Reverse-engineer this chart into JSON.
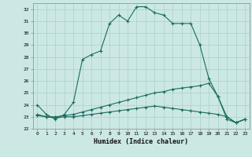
{
  "xlabel": "Humidex (Indice chaleur)",
  "bg_color": "#cce8e4",
  "grid_color": "#aacfcb",
  "line_color": "#1a6b60",
  "xlim": [
    -0.5,
    23.5
  ],
  "ylim": [
    22,
    32.5
  ],
  "xticks": [
    0,
    1,
    2,
    3,
    4,
    5,
    6,
    7,
    8,
    9,
    10,
    11,
    12,
    13,
    14,
    15,
    16,
    17,
    18,
    19,
    20,
    21,
    22,
    23
  ],
  "yticks": [
    22,
    23,
    24,
    25,
    26,
    27,
    28,
    29,
    30,
    31,
    32
  ],
  "line1": {
    "x": [
      0,
      1,
      2,
      3,
      4,
      5,
      6,
      7,
      8,
      9,
      10,
      11,
      12,
      13,
      14,
      15,
      16,
      17,
      18,
      19,
      20,
      21,
      22,
      23
    ],
    "y": [
      24.0,
      23.2,
      22.8,
      23.2,
      24.2,
      27.8,
      28.2,
      28.5,
      30.8,
      31.5,
      31.0,
      32.2,
      32.2,
      31.7,
      31.5,
      30.8,
      30.8,
      30.8,
      29.0,
      26.2,
      24.7,
      22.8,
      22.5,
      22.8
    ]
  },
  "line2": {
    "x": [
      0,
      1,
      2,
      3,
      4,
      5,
      6,
      7,
      8,
      9,
      10,
      11,
      12,
      13,
      14,
      15,
      16,
      17,
      18,
      19,
      20,
      21,
      22,
      23
    ],
    "y": [
      23.2,
      23.0,
      23.0,
      23.1,
      23.2,
      23.4,
      23.6,
      23.8,
      24.0,
      24.2,
      24.4,
      24.6,
      24.8,
      25.0,
      25.1,
      25.3,
      25.4,
      25.5,
      25.6,
      25.8,
      24.7,
      23.0,
      22.5,
      22.8
    ]
  },
  "line3": {
    "x": [
      0,
      1,
      2,
      3,
      4,
      5,
      6,
      7,
      8,
      9,
      10,
      11,
      12,
      13,
      14,
      15,
      16,
      17,
      18,
      19,
      20,
      21,
      22,
      23
    ],
    "y": [
      23.1,
      23.0,
      22.9,
      23.0,
      23.0,
      23.1,
      23.2,
      23.3,
      23.4,
      23.5,
      23.6,
      23.7,
      23.8,
      23.9,
      23.8,
      23.7,
      23.6,
      23.5,
      23.4,
      23.3,
      23.2,
      23.0,
      22.5,
      22.8
    ]
  }
}
